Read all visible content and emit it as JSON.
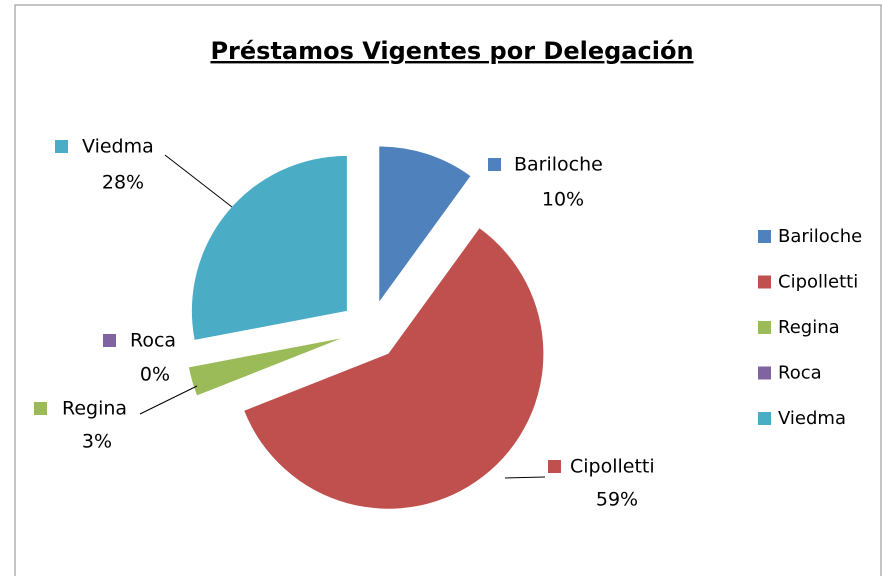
{
  "chart_data": {
    "type": "pie",
    "title": "Préstamos Vigentes por Delegación",
    "categories": [
      "Bariloche",
      "Cipolletti",
      "Regina",
      "Roca",
      "Viedma"
    ],
    "values": [
      10,
      59,
      3,
      0,
      28
    ],
    "value_labels": [
      "10%",
      "59%",
      "3%",
      "0%",
      "28%"
    ],
    "colors": [
      "#4f81bd",
      "#c0504d",
      "#9bbb59",
      "#8064a2",
      "#4bacc6"
    ],
    "legend": "right"
  }
}
